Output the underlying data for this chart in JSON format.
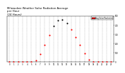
{
  "title": "Milwaukee Weather Solar Radiation Average\nper Hour\n(24 Hours)",
  "title_fontsize": 2.8,
  "hours": [
    0,
    1,
    2,
    3,
    4,
    5,
    6,
    7,
    8,
    9,
    10,
    11,
    12,
    13,
    14,
    15,
    16,
    17,
    18,
    19,
    20,
    21,
    22,
    23
  ],
  "solar_radiation": [
    0,
    0,
    0,
    0,
    0,
    1,
    15,
    80,
    180,
    290,
    390,
    450,
    460,
    420,
    350,
    270,
    180,
    90,
    25,
    2,
    0,
    0,
    0,
    0
  ],
  "black_hours": [
    10,
    11,
    12,
    13
  ],
  "dot_color": "#FF0000",
  "dot_color_black": "#000000",
  "background_color": "#ffffff",
  "grid_color": "#aaaaaa",
  "ylim": [
    0,
    500
  ],
  "xlim": [
    -0.5,
    23.5
  ],
  "ytick_values": [
    0,
    100,
    200,
    300,
    400,
    500
  ],
  "legend_label": "Avg Solar Radiation",
  "legend_color": "#FF0000",
  "dot_size": 1.5
}
